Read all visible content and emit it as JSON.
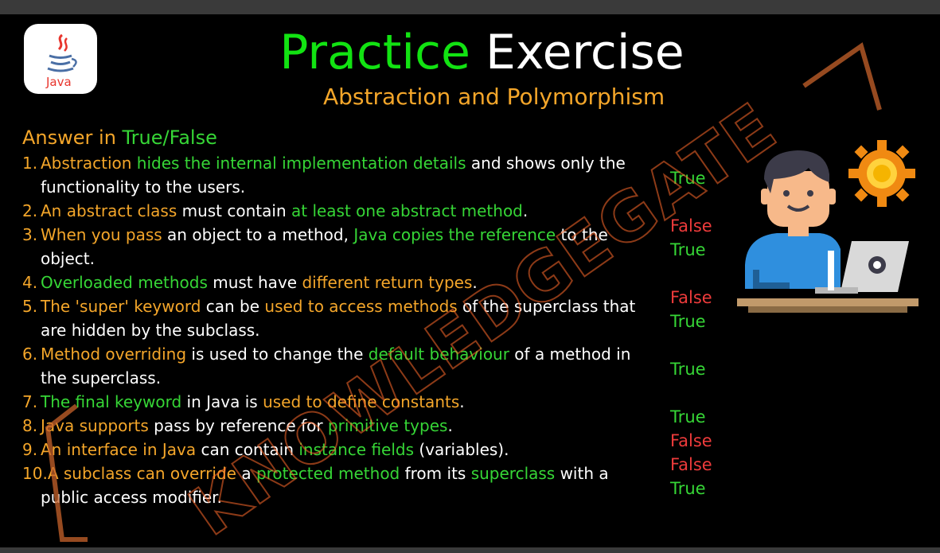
{
  "logo": {
    "label": "Java"
  },
  "title": {
    "word1": "Practice",
    "word2": "Exercise"
  },
  "subtitle": "Abstraction and Polymorphism",
  "header": {
    "part1": "Answer in ",
    "part2": "True/False"
  },
  "watermark": "KNOWLEDGEGATE",
  "questions": [
    {
      "num": "1.",
      "line1": [
        "Abstraction",
        " hides the internal implementation details",
        " and shows only the"
      ],
      "line2": "functionality to the users.",
      "answer": "True"
    },
    {
      "num": "2.",
      "line1": [
        "An abstract class",
        " must contain ",
        "at least one abstract method",
        "."
      ],
      "answer": "False"
    },
    {
      "num": "3.",
      "line1": [
        "When you pass",
        " an object to a method, ",
        "Java copies the reference",
        " to the"
      ],
      "line2": "object.",
      "answer": "True"
    },
    {
      "num": "4.",
      "line1": [
        "Overloaded methods",
        " must have ",
        "different return types",
        "."
      ],
      "answer": "False"
    },
    {
      "num": "5.",
      "line1": [
        "The 'super' keyword",
        " can be ",
        "used to access methods",
        " of the superclass that"
      ],
      "line2": "are hidden by the subclass.",
      "answer": "True"
    },
    {
      "num": "6.",
      "line1": [
        "Method overriding",
        " is used to change the ",
        "default behaviour",
        " of a method in"
      ],
      "line2": "the superclass.",
      "answer": "True"
    },
    {
      "num": "7.",
      "line1": [
        "The final keyword",
        " in Java is ",
        "used to define constants",
        "."
      ],
      "answer": "True"
    },
    {
      "num": "8.",
      "line1": [
        "Java supports",
        " pass by reference for ",
        "primitive types",
        "."
      ],
      "answer": "False"
    },
    {
      "num": "9.",
      "line1": [
        "An interface in Java",
        " can contain ",
        "instance fields",
        " (variables)."
      ],
      "answer": "False"
    },
    {
      "num": "10.",
      "line1": [
        "A subclass can override",
        " a ",
        "protected method",
        " from its ",
        "superclass",
        " with a"
      ],
      "line2": "public access modifier.",
      "answer": "True"
    }
  ],
  "colors": {
    "green": "#36d636",
    "orange": "#f4a62a",
    "red": "#ee3b3b",
    "background": "#000000"
  }
}
